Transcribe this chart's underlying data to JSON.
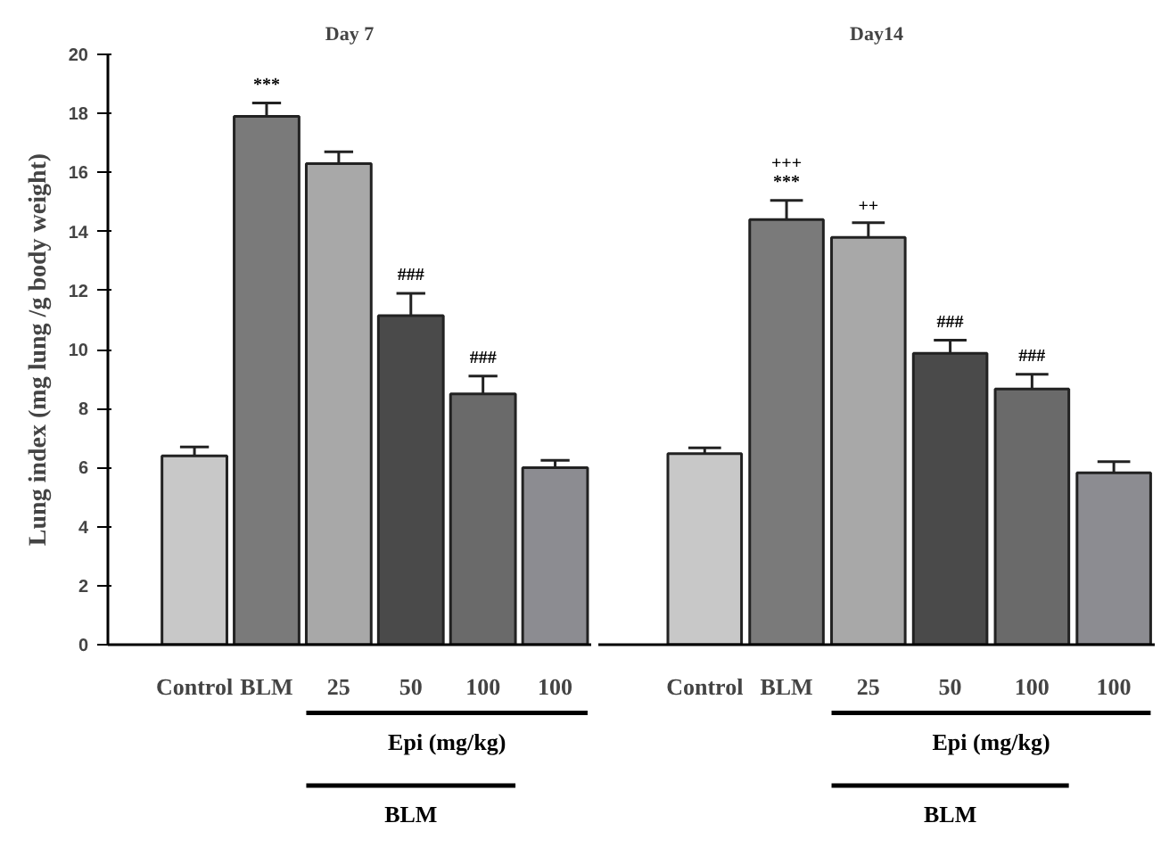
{
  "chart_data": [
    {
      "type": "bar",
      "title": "Day 7",
      "ylabel": "Lung index (mg lung /g body weight)",
      "categories": [
        "Control",
        "BLM",
        "25",
        "50",
        "100",
        "100"
      ],
      "values": [
        6.4,
        17.9,
        16.3,
        11.15,
        8.5,
        6.0
      ],
      "errors": [
        0.3,
        0.45,
        0.4,
        0.75,
        0.6,
        0.25
      ],
      "colors": [
        "#c8c8c8",
        "#7a7a7a",
        "#a8a8a8",
        "#4a4a4a",
        "#6a6a6a",
        "#8c8c91"
      ],
      "ylim": [
        0,
        20
      ],
      "yticks": [
        0,
        2,
        4,
        6,
        8,
        10,
        12,
        14,
        16,
        18,
        20
      ],
      "annotations": [
        "***",
        "###",
        "###",
        "Epi (mg/kg)",
        "BLM"
      ]
    },
    {
      "type": "bar",
      "title": "Day14",
      "categories": [
        "Control",
        "BLM",
        "25",
        "50",
        "100",
        "100"
      ],
      "values": [
        6.47,
        14.4,
        13.8,
        9.87,
        8.66,
        5.82
      ],
      "errors": [
        0.2,
        0.65,
        0.5,
        0.45,
        0.5,
        0.38
      ],
      "colors": [
        "#c8c8c8",
        "#7a7a7a",
        "#a8a8a8",
        "#4a4a4a",
        "#6a6a6a",
        "#8c8c91"
      ],
      "ylim": [
        0,
        20
      ],
      "tick_labels": "x",
      "annotations": [
        "+++",
        "***",
        "++",
        "###",
        "###",
        "Epi (mg/kg)",
        "BLM"
      ]
    }
  ]
}
